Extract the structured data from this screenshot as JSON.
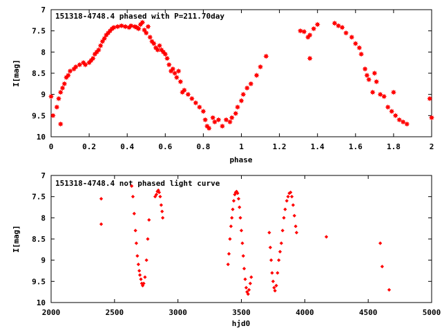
{
  "chart_data": [
    {
      "type": "scatter",
      "title": "151318-4748.4 phased with P=211.70day",
      "xlabel": "phase",
      "ylabel": "I[mag]",
      "xlim": [
        0,
        2
      ],
      "ylim": [
        7,
        10
      ],
      "y_inverted": true,
      "grid": false,
      "legend": "none",
      "marker": "filled-star",
      "color": "#ff0000",
      "xticks": [
        0,
        0.2,
        0.4,
        0.6,
        0.8,
        1,
        1.2,
        1.4,
        1.6,
        1.8,
        2
      ],
      "xtick_labels": [
        "0",
        "0.2",
        "0.4",
        "0.6",
        "0.8",
        "1",
        "1.2",
        "1.4",
        "1.6",
        "1.8",
        "2"
      ],
      "yticks": [
        7,
        7.5,
        8,
        8.5,
        9,
        9.5,
        10
      ],
      "ytick_labels": [
        "7",
        "7.5",
        "8",
        "8.5",
        "9",
        "9.5",
        "10"
      ],
      "points": [
        [
          0.0,
          9.05
        ],
        [
          0.01,
          9.5
        ],
        [
          0.03,
          9.3
        ],
        [
          0.04,
          9.1
        ],
        [
          0.05,
          8.95
        ],
        [
          0.05,
          9.7
        ],
        [
          0.06,
          8.85
        ],
        [
          0.07,
          8.75
        ],
        [
          0.08,
          8.6
        ],
        [
          0.09,
          8.55
        ],
        [
          0.1,
          8.45
        ],
        [
          0.12,
          8.4
        ],
        [
          0.13,
          8.35
        ],
        [
          0.15,
          8.3
        ],
        [
          0.17,
          8.25
        ],
        [
          0.18,
          8.3
        ],
        [
          0.2,
          8.25
        ],
        [
          0.21,
          8.2
        ],
        [
          0.22,
          8.15
        ],
        [
          0.23,
          8.05
        ],
        [
          0.24,
          8.0
        ],
        [
          0.25,
          7.95
        ],
        [
          0.26,
          7.85
        ],
        [
          0.27,
          7.75
        ],
        [
          0.28,
          7.68
        ],
        [
          0.29,
          7.6
        ],
        [
          0.3,
          7.55
        ],
        [
          0.31,
          7.5
        ],
        [
          0.32,
          7.45
        ],
        [
          0.33,
          7.42
        ],
        [
          0.35,
          7.4
        ],
        [
          0.37,
          7.38
        ],
        [
          0.39,
          7.4
        ],
        [
          0.41,
          7.42
        ],
        [
          0.42,
          7.38
        ],
        [
          0.44,
          7.4
        ],
        [
          0.45,
          7.42
        ],
        [
          0.46,
          7.45
        ],
        [
          0.47,
          7.35
        ],
        [
          0.48,
          7.3
        ],
        [
          0.49,
          7.48
        ],
        [
          0.5,
          7.55
        ],
        [
          0.51,
          7.4
        ],
        [
          0.52,
          7.65
        ],
        [
          0.53,
          7.75
        ],
        [
          0.54,
          7.8
        ],
        [
          0.55,
          7.9
        ],
        [
          0.56,
          7.95
        ],
        [
          0.57,
          7.85
        ],
        [
          0.58,
          7.95
        ],
        [
          0.59,
          8.0
        ],
        [
          0.6,
          8.05
        ],
        [
          0.61,
          8.15
        ],
        [
          0.62,
          8.3
        ],
        [
          0.63,
          8.45
        ],
        [
          0.64,
          8.4
        ],
        [
          0.65,
          8.5
        ],
        [
          0.66,
          8.6
        ],
        [
          0.67,
          8.45
        ],
        [
          0.68,
          8.7
        ],
        [
          0.69,
          8.95
        ],
        [
          0.7,
          8.9
        ],
        [
          0.72,
          9.0
        ],
        [
          0.74,
          9.1
        ],
        [
          0.76,
          9.2
        ],
        [
          0.78,
          9.3
        ],
        [
          0.8,
          9.4
        ],
        [
          0.81,
          9.6
        ],
        [
          0.82,
          9.75
        ],
        [
          0.83,
          9.8
        ],
        [
          0.85,
          9.55
        ],
        [
          0.86,
          9.65
        ],
        [
          0.88,
          9.6
        ],
        [
          0.9,
          9.75
        ],
        [
          0.92,
          9.6
        ],
        [
          0.94,
          9.65
        ],
        [
          0.95,
          9.55
        ],
        [
          0.97,
          9.45
        ],
        [
          0.98,
          9.3
        ],
        [
          1.0,
          9.15
        ],
        [
          1.01,
          9.0
        ],
        [
          1.03,
          8.85
        ],
        [
          1.05,
          8.75
        ],
        [
          1.08,
          8.55
        ],
        [
          1.1,
          8.35
        ],
        [
          1.13,
          8.1
        ],
        [
          1.31,
          7.5
        ],
        [
          1.33,
          7.52
        ],
        [
          1.35,
          7.65
        ],
        [
          1.36,
          7.6
        ],
        [
          1.36,
          8.15
        ],
        [
          1.38,
          7.45
        ],
        [
          1.4,
          7.35
        ],
        [
          1.49,
          7.32
        ],
        [
          1.51,
          7.38
        ],
        [
          1.53,
          7.42
        ],
        [
          1.55,
          7.55
        ],
        [
          1.58,
          7.65
        ],
        [
          1.6,
          7.8
        ],
        [
          1.62,
          7.9
        ],
        [
          1.63,
          8.05
        ],
        [
          1.65,
          8.4
        ],
        [
          1.66,
          8.55
        ],
        [
          1.67,
          8.65
        ],
        [
          1.69,
          8.95
        ],
        [
          1.7,
          8.5
        ],
        [
          1.71,
          8.7
        ],
        [
          1.73,
          9.0
        ],
        [
          1.75,
          9.05
        ],
        [
          1.77,
          9.3
        ],
        [
          1.79,
          9.4
        ],
        [
          1.8,
          8.95
        ],
        [
          1.81,
          9.5
        ],
        [
          1.83,
          9.6
        ],
        [
          1.85,
          9.65
        ],
        [
          1.87,
          9.7
        ],
        [
          1.99,
          9.1
        ],
        [
          2.0,
          9.55
        ]
      ]
    },
    {
      "type": "scatter",
      "title": "151318-4748.4 not phased light curve",
      "xlabel": "hjd0",
      "ylabel": "I[mag]",
      "xlim": [
        2000,
        5000
      ],
      "ylim": [
        7,
        10
      ],
      "y_inverted": true,
      "grid": false,
      "legend": "none",
      "marker": "small-diamond",
      "color": "#ff0000",
      "xticks": [
        2000,
        2500,
        3000,
        3500,
        4000,
        4500,
        5000
      ],
      "xtick_labels": [
        "2000",
        "2500",
        "3000",
        "3500",
        "4000",
        "4500",
        "5000"
      ],
      "yticks": [
        7,
        7.5,
        8,
        8.5,
        9,
        9.5,
        10
      ],
      "ytick_labels": [
        "7",
        "7.5",
        "8",
        "8.5",
        "9",
        "9.5",
        "10"
      ],
      "points": [
        [
          2395,
          7.55
        ],
        [
          2395,
          8.15
        ],
        [
          2635,
          7.25
        ],
        [
          2645,
          7.5
        ],
        [
          2655,
          7.9
        ],
        [
          2665,
          8.3
        ],
        [
          2672,
          8.6
        ],
        [
          2680,
          8.9
        ],
        [
          2688,
          9.1
        ],
        [
          2695,
          9.25
        ],
        [
          2700,
          9.35
        ],
        [
          2708,
          9.45
        ],
        [
          2715,
          9.55
        ],
        [
          2722,
          9.6
        ],
        [
          2730,
          9.55
        ],
        [
          2740,
          9.4
        ],
        [
          2752,
          9.0
        ],
        [
          2762,
          8.5
        ],
        [
          2772,
          8.05
        ],
        [
          2820,
          7.5
        ],
        [
          2830,
          7.45
        ],
        [
          2838,
          7.38
        ],
        [
          2845,
          7.35
        ],
        [
          2852,
          7.4
        ],
        [
          2860,
          7.5
        ],
        [
          2868,
          7.7
        ],
        [
          2875,
          7.85
        ],
        [
          2880,
          8.0
        ],
        [
          3395,
          9.1
        ],
        [
          3402,
          8.85
        ],
        [
          3410,
          8.5
        ],
        [
          3418,
          8.2
        ],
        [
          3425,
          8.0
        ],
        [
          3432,
          7.8
        ],
        [
          3440,
          7.6
        ],
        [
          3448,
          7.45
        ],
        [
          3455,
          7.4
        ],
        [
          3462,
          7.38
        ],
        [
          3470,
          7.42
        ],
        [
          3478,
          7.55
        ],
        [
          3485,
          7.75
        ],
        [
          3492,
          8.0
        ],
        [
          3500,
          8.3
        ],
        [
          3508,
          8.6
        ],
        [
          3515,
          8.9
        ],
        [
          3522,
          9.2
        ],
        [
          3530,
          9.45
        ],
        [
          3538,
          9.65
        ],
        [
          3545,
          9.75
        ],
        [
          3553,
          9.8
        ],
        [
          3560,
          9.7
        ],
        [
          3570,
          9.55
        ],
        [
          3578,
          9.4
        ],
        [
          3720,
          8.35
        ],
        [
          3728,
          8.7
        ],
        [
          3735,
          9.0
        ],
        [
          3742,
          9.3
        ],
        [
          3750,
          9.5
        ],
        [
          3758,
          9.65
        ],
        [
          3765,
          9.72
        ],
        [
          3775,
          9.6
        ],
        [
          3785,
          9.3
        ],
        [
          3795,
          9.0
        ],
        [
          3805,
          8.8
        ],
        [
          3815,
          8.6
        ],
        [
          3825,
          8.3
        ],
        [
          3835,
          8.0
        ],
        [
          3845,
          7.8
        ],
        [
          3858,
          7.6
        ],
        [
          3868,
          7.5
        ],
        [
          3878,
          7.42
        ],
        [
          3888,
          7.4
        ],
        [
          3898,
          7.5
        ],
        [
          3908,
          7.7
        ],
        [
          3918,
          7.95
        ],
        [
          3928,
          8.2
        ],
        [
          3935,
          8.35
        ],
        [
          4170,
          8.45
        ],
        [
          4595,
          8.6
        ],
        [
          4610,
          9.15
        ],
        [
          4665,
          9.7
        ]
      ]
    }
  ]
}
